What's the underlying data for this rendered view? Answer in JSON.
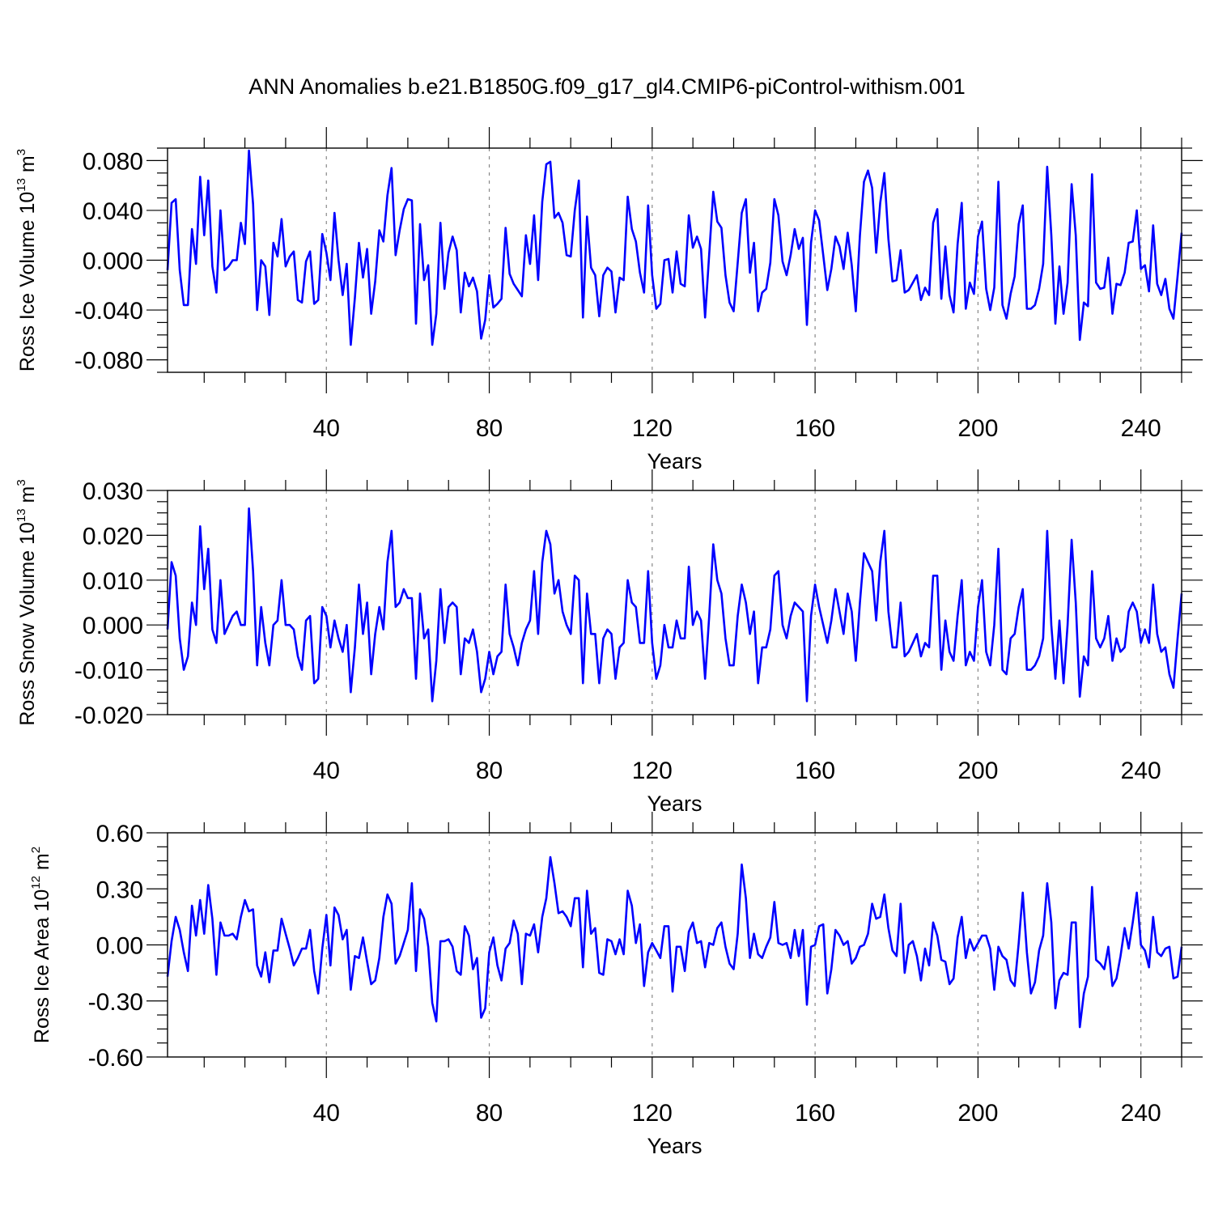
{
  "title": "ANN Anomalies b.e21.B1850G.f09_g17_gl4.CMIP6-piControl-withism.001",
  "colors": {
    "line": "#0000ff",
    "axis": "#000000",
    "grid": "#888888"
  },
  "chart_data": [
    {
      "type": "line",
      "name": "ross-ice-volume",
      "title": "",
      "ylabel": "Ross Ice Volume 10^13 m^3",
      "ylabel_text": "Ross Ice Volume 10",
      "ylabel_exp": "13",
      "ylabel_unit": " m",
      "ylabel_unit_exp": "3",
      "xlabel": "Years",
      "xlim": [
        1,
        250
      ],
      "ylim": [
        -0.09,
        0.09
      ],
      "xticks": [
        40,
        80,
        120,
        160,
        200,
        240
      ],
      "xtick_labels": [
        "40",
        "80",
        "120",
        "160",
        "200",
        "240"
      ],
      "yticks": [
        -0.08,
        -0.04,
        0.0,
        0.04,
        0.08
      ],
      "ytick_labels": [
        "-0.080",
        "-0.040",
        "0.000",
        "0.040",
        "0.080"
      ],
      "values": [
        -0.008,
        0.046,
        0.049,
        -0.008,
        -0.036,
        -0.036,
        0.025,
        -0.003,
        0.067,
        0.02,
        0.064,
        -0.005,
        -0.026,
        0.04,
        -0.008,
        -0.005,
        0.0,
        0.0,
        0.03,
        0.013,
        0.088,
        0.045,
        -0.04,
        0.0,
        -0.005,
        -0.044,
        0.014,
        0.003,
        0.033,
        -0.005,
        0.003,
        0.007,
        -0.032,
        -0.034,
        -0.001,
        0.007,
        -0.035,
        -0.032,
        0.021,
        0.006,
        -0.016,
        0.038,
        0.0,
        -0.028,
        -0.003,
        -0.068,
        -0.03,
        0.014,
        -0.014,
        0.009,
        -0.043,
        -0.017,
        0.024,
        0.015,
        0.052,
        0.074,
        0.004,
        0.024,
        0.041,
        0.049,
        0.048,
        -0.051,
        0.029,
        -0.016,
        -0.004,
        -0.068,
        -0.043,
        0.03,
        -0.023,
        0.006,
        0.019,
        0.008,
        -0.042,
        -0.01,
        -0.021,
        -0.014,
        -0.025,
        -0.063,
        -0.048,
        -0.012,
        -0.038,
        -0.035,
        -0.031,
        0.026,
        -0.011,
        -0.019,
        -0.024,
        -0.029,
        0.02,
        -0.003,
        0.036,
        -0.016,
        0.047,
        0.077,
        0.079,
        0.034,
        0.038,
        0.03,
        0.004,
        0.003,
        0.04,
        0.064,
        -0.046,
        0.035,
        -0.006,
        -0.012,
        -0.045,
        -0.012,
        -0.006,
        -0.009,
        -0.042,
        -0.014,
        -0.016,
        0.051,
        0.025,
        0.015,
        -0.01,
        -0.026,
        0.044,
        -0.012,
        -0.039,
        -0.035,
        0.0,
        0.001,
        -0.026,
        0.007,
        -0.019,
        -0.021,
        0.036,
        0.01,
        0.019,
        0.009,
        -0.046,
        0.005,
        0.055,
        0.031,
        0.026,
        -0.012,
        -0.034,
        -0.041,
        -0.002,
        0.038,
        0.049,
        -0.01,
        0.014,
        -0.041,
        -0.026,
        -0.023,
        -0.002,
        0.049,
        0.036,
        -0.001,
        -0.012,
        0.004,
        0.025,
        0.009,
        0.018,
        -0.052,
        0.014,
        0.04,
        0.032,
        0.004,
        -0.024,
        -0.007,
        0.019,
        0.011,
        -0.007,
        0.022,
        -0.004,
        -0.041,
        0.02,
        0.063,
        0.072,
        0.058,
        0.006,
        0.046,
        0.07,
        0.017,
        -0.017,
        -0.016,
        0.008,
        -0.026,
        -0.024,
        -0.018,
        -0.012,
        -0.032,
        -0.022,
        -0.028,
        0.03,
        0.041,
        -0.031,
        0.011,
        -0.028,
        -0.042,
        0.013,
        0.046,
        -0.039,
        -0.018,
        -0.027,
        0.019,
        0.031,
        -0.023,
        -0.04,
        -0.022,
        0.063,
        -0.036,
        -0.047,
        -0.027,
        -0.013,
        0.029,
        0.044,
        -0.039,
        -0.039,
        -0.036,
        -0.023,
        -0.003,
        0.075,
        0.02,
        -0.051,
        -0.005,
        -0.043,
        -0.018,
        0.061,
        0.02,
        -0.064,
        -0.034,
        -0.037,
        0.069,
        -0.018,
        -0.023,
        -0.022,
        0.002,
        -0.043,
        -0.019,
        -0.02,
        -0.01,
        0.014,
        0.015,
        0.04,
        -0.007,
        -0.004,
        -0.025,
        0.028,
        -0.019,
        -0.028,
        -0.015,
        -0.039,
        -0.047,
        -0.013,
        0.022
      ]
    },
    {
      "type": "line",
      "name": "ross-snow-volume",
      "title": "",
      "ylabel": "Ross Snow Volume 10^13 m^3",
      "ylabel_text": "Ross Snow Volume 10",
      "ylabel_exp": "13",
      "ylabel_unit": " m",
      "ylabel_unit_exp": "3",
      "xlabel": "Years",
      "xlim": [
        1,
        250
      ],
      "ylim": [
        -0.02,
        0.03
      ],
      "xticks": [
        40,
        80,
        120,
        160,
        200,
        240
      ],
      "xtick_labels": [
        "40",
        "80",
        "120",
        "160",
        "200",
        "240"
      ],
      "yticks": [
        -0.02,
        -0.01,
        0.0,
        0.01,
        0.02,
        0.03
      ],
      "ytick_labels": [
        "-0.020",
        "-0.010",
        "0.000",
        "0.010",
        "0.020",
        "0.030"
      ],
      "values": [
        -0.001,
        0.014,
        0.011,
        -0.003,
        -0.01,
        -0.007,
        0.005,
        0.0,
        0.022,
        0.008,
        0.017,
        -0.001,
        -0.004,
        0.01,
        -0.002,
        0.0,
        0.002,
        0.003,
        0.0,
        0.0,
        0.026,
        0.012,
        -0.009,
        0.004,
        -0.004,
        -0.009,
        0.0,
        0.001,
        0.01,
        0.0,
        0.0,
        -0.001,
        -0.007,
        -0.01,
        0.001,
        0.002,
        -0.013,
        -0.012,
        0.004,
        0.002,
        -0.005,
        0.001,
        -0.003,
        -0.006,
        0.0,
        -0.015,
        -0.005,
        0.009,
        -0.002,
        0.005,
        -0.011,
        -0.002,
        0.004,
        -0.001,
        0.014,
        0.021,
        0.004,
        0.005,
        0.008,
        0.006,
        0.006,
        -0.012,
        0.007,
        -0.003,
        -0.001,
        -0.017,
        -0.008,
        0.008,
        -0.004,
        0.004,
        0.005,
        0.004,
        -0.011,
        -0.003,
        -0.004,
        -0.001,
        -0.006,
        -0.015,
        -0.012,
        -0.006,
        -0.011,
        -0.007,
        -0.006,
        0.009,
        -0.002,
        -0.005,
        -0.009,
        -0.004,
        -0.001,
        0.001,
        0.012,
        -0.002,
        0.014,
        0.021,
        0.018,
        0.007,
        0.01,
        0.003,
        0.0,
        -0.002,
        0.011,
        0.01,
        -0.013,
        0.007,
        -0.002,
        -0.002,
        -0.013,
        -0.003,
        -0.001,
        -0.002,
        -0.012,
        -0.005,
        -0.004,
        0.01,
        0.005,
        0.004,
        -0.004,
        -0.004,
        0.012,
        -0.004,
        -0.012,
        -0.009,
        0.0,
        -0.005,
        -0.005,
        0.001,
        -0.003,
        -0.003,
        0.013,
        0.0,
        0.003,
        0.001,
        -0.012,
        0.002,
        0.018,
        0.01,
        0.007,
        -0.003,
        -0.009,
        -0.009,
        0.002,
        0.009,
        0.005,
        -0.002,
        0.003,
        -0.013,
        -0.005,
        -0.005,
        -0.001,
        0.011,
        0.012,
        0.0,
        -0.003,
        0.002,
        0.005,
        0.004,
        0.003,
        -0.017,
        0.002,
        0.009,
        0.004,
        0.0,
        -0.004,
        0.001,
        0.008,
        0.003,
        -0.002,
        0.007,
        0.003,
        -0.008,
        0.005,
        0.016,
        0.014,
        0.012,
        0.001,
        0.014,
        0.021,
        0.003,
        -0.005,
        -0.005,
        0.005,
        -0.007,
        -0.006,
        -0.004,
        -0.002,
        -0.007,
        -0.004,
        -0.005,
        0.011,
        0.011,
        -0.01,
        0.001,
        -0.006,
        -0.008,
        0.002,
        0.01,
        -0.009,
        -0.006,
        -0.008,
        0.004,
        0.01,
        -0.006,
        -0.009,
        0.0,
        0.017,
        -0.01,
        -0.011,
        -0.003,
        -0.002,
        0.004,
        0.008,
        -0.01,
        -0.01,
        -0.009,
        -0.007,
        -0.003,
        0.021,
        0.0,
        -0.012,
        0.001,
        -0.013,
        0.0,
        0.019,
        0.005,
        -0.016,
        -0.007,
        -0.009,
        0.012,
        -0.003,
        -0.005,
        -0.003,
        0.002,
        -0.008,
        -0.003,
        -0.006,
        -0.005,
        0.003,
        0.005,
        0.003,
        -0.004,
        -0.001,
        -0.004,
        0.009,
        -0.002,
        -0.006,
        -0.005,
        -0.011,
        -0.014,
        -0.003,
        0.007
      ]
    },
    {
      "type": "line",
      "name": "ross-ice-area",
      "title": "",
      "ylabel": "Ross Ice Area 10^12 m^2",
      "ylabel_text": "Ross Ice Area 10",
      "ylabel_exp": "12",
      "ylabel_unit": " m",
      "ylabel_unit_exp": "2",
      "xlabel": "Years",
      "xlim": [
        1,
        250
      ],
      "ylim": [
        -0.6,
        0.6
      ],
      "xticks": [
        40,
        80,
        120,
        160,
        200,
        240
      ],
      "xtick_labels": [
        "40",
        "80",
        "120",
        "160",
        "200",
        "240"
      ],
      "yticks": [
        -0.6,
        -0.3,
        0.0,
        0.3,
        0.6
      ],
      "ytick_labels": [
        "-0.60",
        "-0.30",
        "0.00",
        "0.30",
        "0.60"
      ],
      "values": [
        -0.17,
        0.02,
        0.15,
        0.08,
        -0.04,
        -0.14,
        0.21,
        0.05,
        0.24,
        0.06,
        0.32,
        0.14,
        -0.16,
        0.12,
        0.05,
        0.05,
        0.06,
        0.03,
        0.15,
        0.24,
        0.18,
        0.19,
        -0.11,
        -0.17,
        -0.04,
        -0.2,
        -0.03,
        -0.03,
        0.14,
        0.06,
        -0.02,
        -0.11,
        -0.07,
        -0.02,
        -0.02,
        0.08,
        -0.14,
        -0.26,
        -0.02,
        0.16,
        -0.11,
        0.2,
        0.16,
        0.03,
        0.08,
        -0.24,
        -0.06,
        -0.07,
        0.04,
        -0.09,
        -0.21,
        -0.19,
        -0.07,
        0.15,
        0.27,
        0.22,
        -0.1,
        -0.06,
        0.01,
        0.08,
        0.33,
        -0.14,
        0.19,
        0.14,
        -0.01,
        -0.31,
        -0.41,
        0.02,
        0.02,
        0.03,
        -0.01,
        -0.14,
        -0.16,
        0.1,
        0.05,
        -0.13,
        -0.07,
        -0.39,
        -0.34,
        -0.04,
        0.04,
        -0.11,
        -0.19,
        -0.02,
        0.01,
        0.13,
        0.06,
        -0.21,
        0.06,
        0.05,
        0.11,
        -0.04,
        0.15,
        0.25,
        0.47,
        0.33,
        0.17,
        0.18,
        0.15,
        0.1,
        0.25,
        0.25,
        -0.12,
        0.29,
        0.06,
        0.09,
        -0.15,
        -0.16,
        0.03,
        0.02,
        -0.05,
        0.03,
        -0.05,
        0.29,
        0.21,
        0.01,
        0.11,
        -0.22,
        -0.04,
        0.01,
        -0.03,
        -0.07,
        0.1,
        0.1,
        -0.25,
        -0.01,
        -0.01,
        -0.14,
        0.07,
        0.12,
        0.01,
        0.02,
        -0.12,
        0.01,
        0.0,
        0.09,
        0.12,
        -0.01,
        -0.1,
        -0.13,
        0.06,
        0.43,
        0.25,
        -0.07,
        0.06,
        -0.05,
        -0.07,
        -0.01,
        0.04,
        0.23,
        0.01,
        0.0,
        0.01,
        -0.07,
        0.08,
        -0.06,
        0.08,
        -0.32,
        -0.01,
        0.0,
        0.1,
        0.11,
        -0.26,
        -0.13,
        0.08,
        0.05,
        0.0,
        0.02,
        -0.1,
        -0.07,
        -0.01,
        0.0,
        0.06,
        0.22,
        0.14,
        0.15,
        0.27,
        0.09,
        -0.03,
        -0.06,
        0.22,
        -0.15,
        0.0,
        0.02,
        -0.06,
        -0.19,
        -0.02,
        -0.11,
        0.12,
        0.05,
        -0.08,
        -0.09,
        -0.21,
        -0.18,
        0.04,
        0.15,
        -0.07,
        0.03,
        -0.03,
        0.01,
        0.05,
        0.05,
        -0.02,
        -0.24,
        -0.01,
        -0.06,
        -0.08,
        -0.19,
        -0.22,
        0.01,
        0.28,
        -0.04,
        -0.26,
        -0.2,
        -0.03,
        0.05,
        0.33,
        0.12,
        -0.34,
        -0.19,
        -0.15,
        -0.16,
        0.12,
        0.12,
        -0.44,
        -0.26,
        -0.17,
        0.31,
        -0.08,
        -0.1,
        -0.13,
        -0.01,
        -0.22,
        -0.18,
        -0.06,
        0.09,
        -0.02,
        0.12,
        0.28,
        0.0,
        -0.03,
        -0.12,
        0.15,
        -0.04,
        -0.06,
        -0.02,
        -0.01,
        -0.18,
        -0.17,
        -0.01
      ]
    }
  ]
}
